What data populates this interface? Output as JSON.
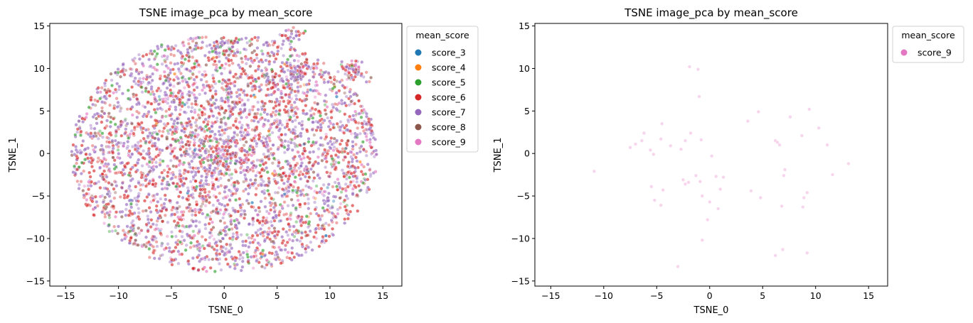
{
  "chart_data": [
    {
      "type": "scatter",
      "title": "TSNE image_pca by mean_score",
      "xlabel": "TSNE_0",
      "ylabel": "TSNE_1",
      "xlim": [
        -16.5,
        16.8
      ],
      "ylim": [
        -15.6,
        15.3
      ],
      "xticks": [
        -15,
        -10,
        -5,
        0,
        5,
        10,
        15
      ],
      "yticks": [
        -15,
        -10,
        -5,
        0,
        5,
        10,
        15
      ],
      "grid": false,
      "legend": {
        "title": "mean_score",
        "placement": "outside-upper-right",
        "entries": [
          {
            "label": "score_3",
            "color": "#1f77b4"
          },
          {
            "label": "score_4",
            "color": "#ff7f0e"
          },
          {
            "label": "score_5",
            "color": "#2ca02c"
          },
          {
            "label": "score_6",
            "color": "#d62728"
          },
          {
            "label": "score_7",
            "color": "#9467bd"
          },
          {
            "label": "score_8",
            "color": "#8c564b"
          },
          {
            "label": "score_9",
            "color": "#e377c2"
          }
        ]
      },
      "point_alpha": 0.4,
      "cluster": {
        "description": "dense roughly circular cloud of several thousand points centered near (0,0), radius about 14, with small dense clumps near (0,12.5), (6.5,14), (12,10) and (12.5,9.5)",
        "center": [
          0,
          0
        ],
        "radius": [
          14.5,
          14
        ],
        "clumps": [
          [
            0,
            12.5
          ],
          [
            6.5,
            14
          ],
          [
            12,
            10
          ],
          [
            12.5,
            9.5
          ],
          [
            7,
            9.5
          ],
          [
            4.5,
            8.5
          ]
        ],
        "series_mix": {
          "score_3": 0.005,
          "score_4": 0.005,
          "score_5": 0.05,
          "score_6": 0.35,
          "score_7": 0.45,
          "score_8": 0.06,
          "score_9": 0.08
        }
      }
    },
    {
      "type": "scatter",
      "title": "TSNE image_pca by mean_score",
      "xlabel": "TSNE_0",
      "ylabel": "TSNE_1",
      "xlim": [
        -16.5,
        16.8
      ],
      "ylim": [
        -15.6,
        15.3
      ],
      "xticks": [
        -15,
        -10,
        -5,
        0,
        5,
        10,
        15
      ],
      "yticks": [
        -15,
        -10,
        -5,
        0,
        5,
        10,
        15
      ],
      "grid": false,
      "legend": {
        "title": "mean_score",
        "placement": "outside-upper-right",
        "entries": [
          {
            "label": "score_9",
            "color": "#e377c2"
          }
        ]
      },
      "point_alpha": 0.3,
      "series": [
        {
          "name": "score_9",
          "color": "#e377c2",
          "points": [
            [
              -1.9,
              10.2
            ],
            [
              -1.1,
              9.9
            ],
            [
              -1.0,
              6.7
            ],
            [
              -1.8,
              2.4
            ],
            [
              -6.2,
              2.4
            ],
            [
              -7.5,
              0.7
            ],
            [
              -7.0,
              1.1
            ],
            [
              -6.4,
              1.5
            ],
            [
              -5.6,
              0.4
            ],
            [
              -5.3,
              -0.1
            ],
            [
              -4.6,
              1.7
            ],
            [
              -4.5,
              3.5
            ],
            [
              -3.7,
              0.9
            ],
            [
              -2.3,
              1.5
            ],
            [
              -2.7,
              0.5
            ],
            [
              -0.8,
              1.6
            ],
            [
              0.2,
              -0.3
            ],
            [
              -10.9,
              -2.1
            ],
            [
              -5.5,
              -3.9
            ],
            [
              -5.2,
              -5.5
            ],
            [
              -4.6,
              -6.1
            ],
            [
              -4.4,
              -4.3
            ],
            [
              -2.5,
              -3.1
            ],
            [
              -2.3,
              -3.6
            ],
            [
              -2.0,
              -3.4
            ],
            [
              -1.3,
              -2.6
            ],
            [
              -0.9,
              -3.3
            ],
            [
              -0.7,
              -5.0
            ],
            [
              -0.2,
              -7.8
            ],
            [
              -0.7,
              -10.2
            ],
            [
              -3.0,
              -13.3
            ],
            [
              0.6,
              -2.7
            ],
            [
              1.3,
              -2.8
            ],
            [
              1.0,
              -4.2
            ],
            [
              0.8,
              -6.5
            ],
            [
              0.0,
              -5.7
            ],
            [
              3.6,
              3.8
            ],
            [
              4.6,
              4.9
            ],
            [
              6.2,
              1.5
            ],
            [
              6.4,
              1.3
            ],
            [
              6.6,
              1.0
            ],
            [
              7.1,
              -1.9
            ],
            [
              7.0,
              -2.6
            ],
            [
              7.6,
              4.3
            ],
            [
              8.7,
              2.1
            ],
            [
              9.4,
              5.2
            ],
            [
              10.3,
              3.0
            ],
            [
              11.1,
              1.0
            ],
            [
              11.6,
              -2.5
            ],
            [
              13.1,
              -1.2
            ],
            [
              3.9,
              -4.4
            ],
            [
              4.8,
              -5.2
            ],
            [
              6.8,
              -6.2
            ],
            [
              8.9,
              -5.2
            ],
            [
              9.2,
              -4.6
            ],
            [
              8.8,
              -6.3
            ],
            [
              6.9,
              -11.3
            ],
            [
              6.2,
              -12.0
            ],
            [
              9.2,
              -11.7
            ]
          ]
        }
      ]
    }
  ]
}
